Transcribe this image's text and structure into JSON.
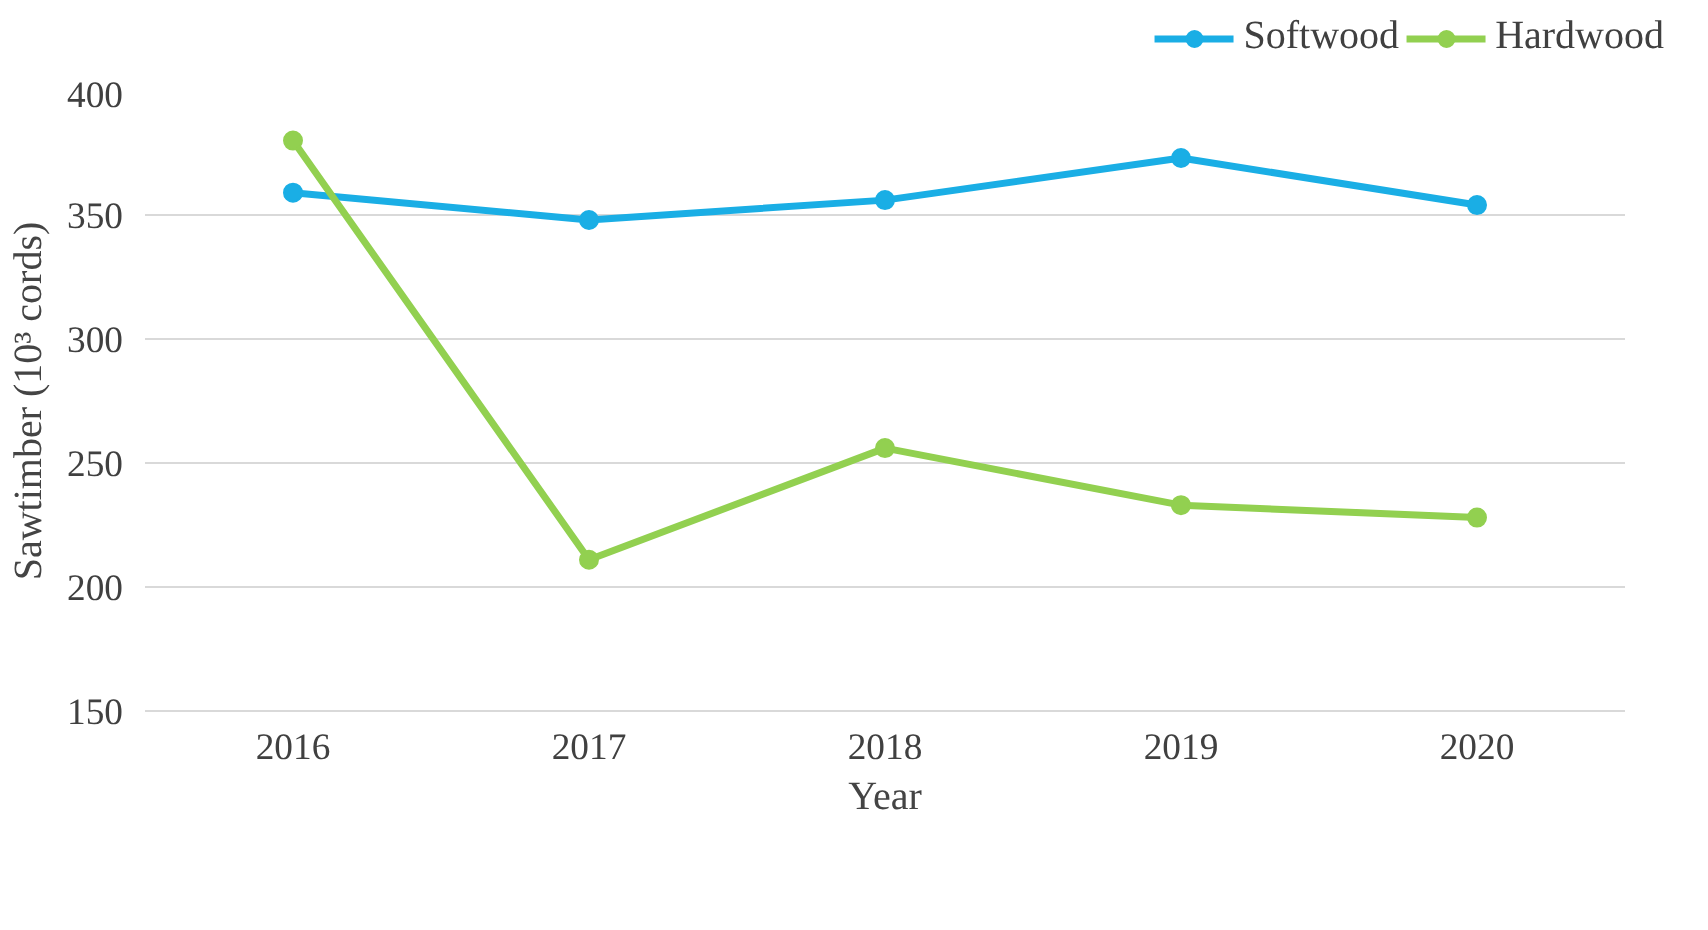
{
  "chart_data": {
    "type": "line",
    "xlabel": "Year",
    "ylabel": "Sawtimber (10³ cords)",
    "categories": [
      "2016",
      "2017",
      "2018",
      "2019",
      "2020"
    ],
    "series": [
      {
        "name": "Softwood",
        "color": "#1aaee5",
        "values": [
          359,
          348,
          356,
          373,
          354
        ]
      },
      {
        "name": "Hardwood",
        "color": "#92d050",
        "values": [
          380,
          211,
          256,
          233,
          228
        ]
      }
    ],
    "ylim": [
      150,
      400
    ],
    "yticks": [
      150,
      200,
      250,
      300,
      350,
      400
    ],
    "grid": "y",
    "legend": "top right",
    "marker": "circle",
    "line_style": "solid"
  }
}
